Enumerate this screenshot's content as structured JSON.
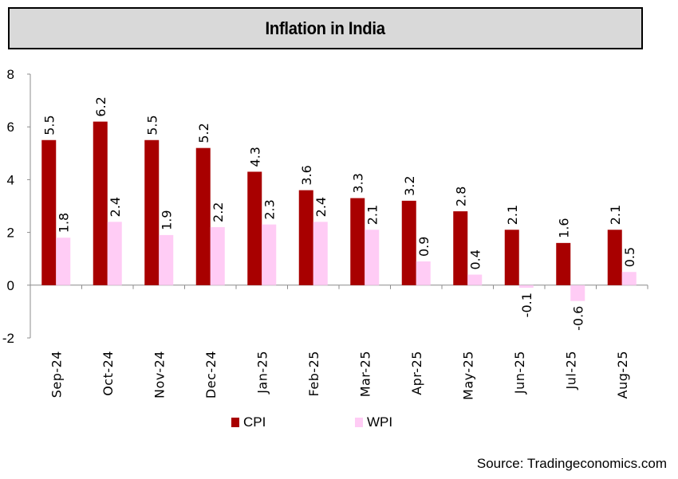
{
  "chart_data": {
    "type": "bar",
    "title": "Inflation in India",
    "xlabel": "",
    "ylabel": "",
    "ylim": [
      -2,
      8
    ],
    "yticks": [
      -2,
      0,
      2,
      4,
      6,
      8
    ],
    "grid": false,
    "legend_position": "bottom",
    "categories": [
      "Sep-24",
      "Oct-24",
      "Nov-24",
      "Dec-24",
      "Jan-25",
      "Feb-25",
      "Mar-25",
      "Apr-25",
      "May-25",
      "Jun-25",
      "Jul-25",
      "Aug-25"
    ],
    "series": [
      {
        "name": "CPI",
        "color": "#a80000",
        "values": [
          5.5,
          6.2,
          5.5,
          5.2,
          4.3,
          3.6,
          3.3,
          3.2,
          2.8,
          2.1,
          1.6,
          2.1
        ]
      },
      {
        "name": "WPI",
        "color": "#ffccf5",
        "values": [
          1.8,
          2.4,
          1.9,
          2.2,
          2.3,
          2.4,
          2.1,
          0.9,
          0.4,
          -0.1,
          -0.6,
          0.5
        ]
      }
    ],
    "source": "Source: Tradingeconomics.com"
  }
}
